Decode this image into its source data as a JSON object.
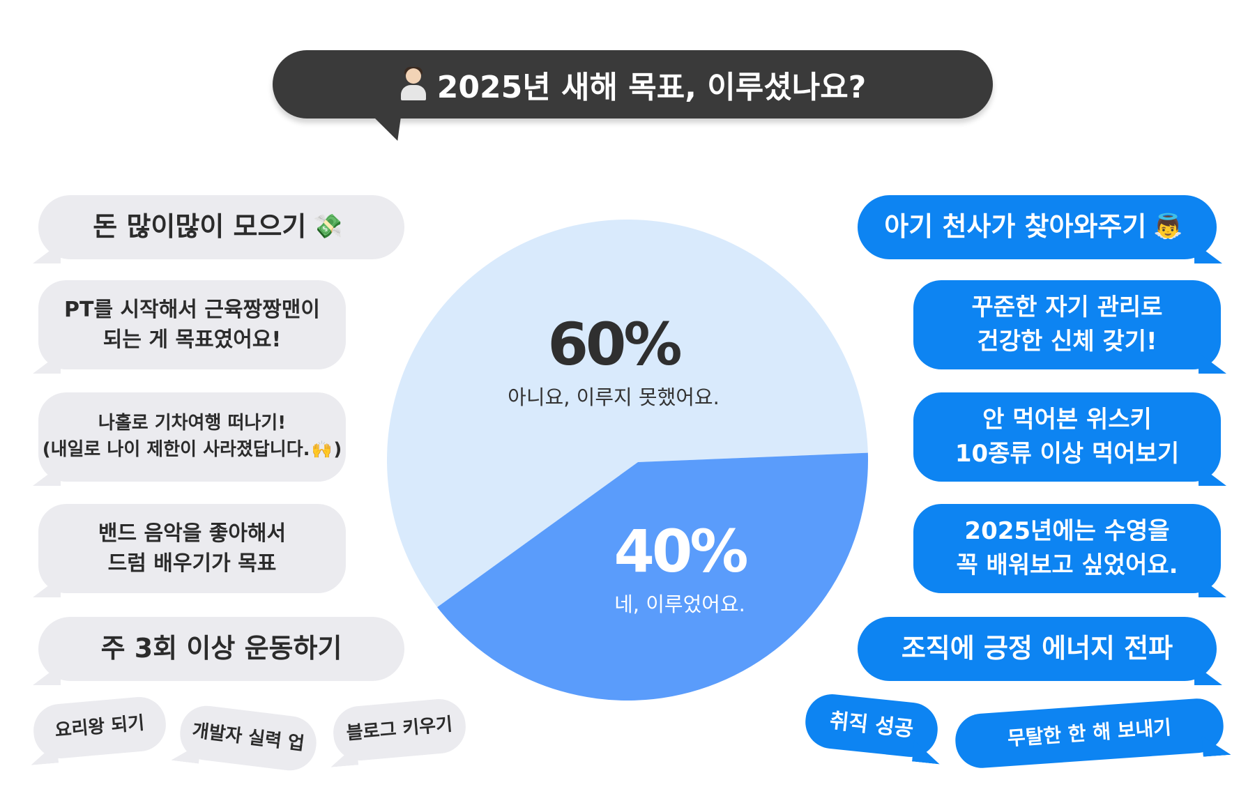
{
  "title": "2025년 새해 목표, 이루셨나요?",
  "chart_data": {
    "type": "pie",
    "slices": [
      {
        "label": "아니요, 이루지 못했어요.",
        "value": 60,
        "value_label": "60%",
        "color": "#d9eafc"
      },
      {
        "label": "네, 이루었어요.",
        "value": 40,
        "value_label": "40%",
        "color": "#5a9cfb"
      }
    ]
  },
  "left_bubbles": [
    {
      "lines": [
        "돈 많이많이 모으기"
      ],
      "icon": "money-with-wings-icon"
    },
    {
      "lines": [
        "PT를 시작해서 근육짱짱맨이",
        "되는 게 목표였어요!"
      ]
    },
    {
      "lines": [
        "나홀로 기차여행 떠나기!",
        "(내일로 나이 제한이 사라졌답니다."
      ],
      "close": ")",
      "icon": "raised-hands-icon"
    },
    {
      "lines": [
        "밴드 음악을 좋아해서",
        "드럼 배우기가 목표"
      ]
    },
    {
      "lines": [
        "주 3회 이상 운동하기"
      ]
    },
    {
      "lines": [
        "요리왕 되기"
      ]
    },
    {
      "lines": [
        "개발자 실력 업"
      ]
    },
    {
      "lines": [
        "블로그 키우기"
      ]
    }
  ],
  "right_bubbles": [
    {
      "lines": [
        "아기 천사가 찾아와주기"
      ],
      "icon": "baby-angel-icon"
    },
    {
      "lines": [
        "꾸준한 자기 관리로",
        "건강한 신체 갖기!"
      ]
    },
    {
      "lines": [
        "안 먹어본 위스키",
        "10종류 이상 먹어보기"
      ]
    },
    {
      "lines": [
        "2025년에는 수영을",
        "꼭 배워보고 싶었어요."
      ]
    },
    {
      "lines": [
        "조직에 긍정 에너지 전파"
      ]
    },
    {
      "lines": [
        "취직 성공"
      ]
    },
    {
      "lines": [
        "무탈한 한 해 보내기"
      ]
    }
  ]
}
